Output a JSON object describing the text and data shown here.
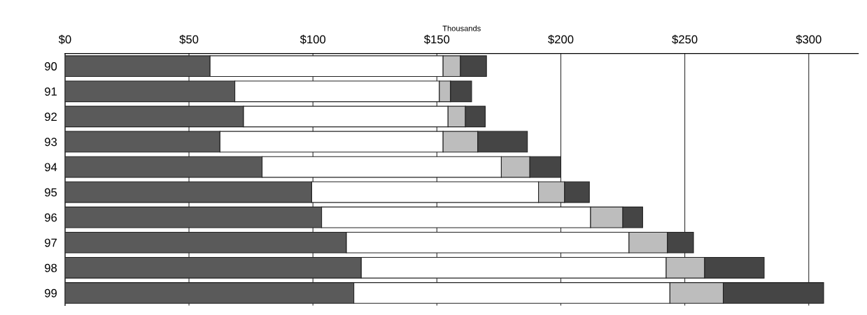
{
  "chart_data": {
    "type": "bar",
    "orientation": "horizontal",
    "stacked": true,
    "xlabel": "Thousands",
    "categories": [
      "90",
      "91",
      "92",
      "93",
      "94",
      "95",
      "96",
      "97",
      "98",
      "99"
    ],
    "series": [
      {
        "color": "#5a5a5a",
        "values": [
          58.5,
          68.5,
          72,
          62.5,
          79.5,
          99.5,
          103.5,
          113.5,
          119.5,
          116.5
        ]
      },
      {
        "color": "#ffffff",
        "values": [
          94,
          82.5,
          82.5,
          90,
          96.5,
          91.5,
          108.5,
          114,
          123,
          127.5
        ]
      },
      {
        "color": "#bdbdbd",
        "values": [
          7,
          4.5,
          7,
          14,
          11.5,
          10.5,
          13,
          15.5,
          15.5,
          21.5
        ]
      },
      {
        "color": "#454545",
        "values": [
          10.5,
          8.5,
          8,
          20,
          12.5,
          10,
          8,
          10.5,
          24,
          40.5
        ]
      }
    ],
    "xlim": [
      0,
      320
    ],
    "xticks": [
      {
        "value": 0,
        "label": "$0"
      },
      {
        "value": 50,
        "label": "$50"
      },
      {
        "value": 100,
        "label": "$100"
      },
      {
        "value": 150,
        "label": "$150"
      },
      {
        "value": 200,
        "label": "$200"
      },
      {
        "value": 250,
        "label": "$250"
      },
      {
        "value": 300,
        "label": "$300"
      }
    ],
    "grid": "x",
    "legend": false
  }
}
